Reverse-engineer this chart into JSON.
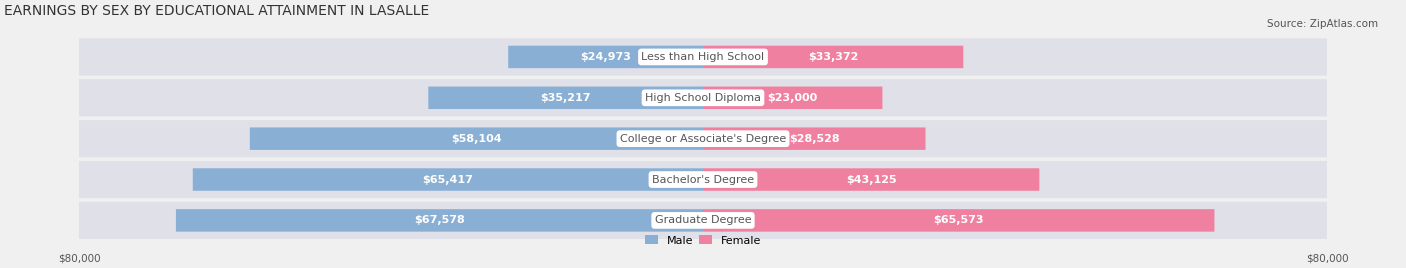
{
  "title": "EARNINGS BY SEX BY EDUCATIONAL ATTAINMENT IN LASALLE",
  "source": "Source: ZipAtlas.com",
  "categories": [
    "Less than High School",
    "High School Diploma",
    "College or Associate's Degree",
    "Bachelor's Degree",
    "Graduate Degree"
  ],
  "male_values": [
    24973,
    35217,
    58104,
    65417,
    67578
  ],
  "female_values": [
    33372,
    23000,
    28528,
    43125,
    65573
  ],
  "male_color": "#8aafd4",
  "female_color": "#f080a0",
  "male_label": "Male",
  "female_label": "Female",
  "max_value": 80000,
  "bg_color": "#f0f0f0",
  "bar_bg_color": "#e0e0e8",
  "label_color_inside": "#ffffff",
  "label_color_outside": "#555555",
  "category_box_color": "#ffffff",
  "category_text_color": "#555555",
  "title_fontsize": 10,
  "source_fontsize": 7.5,
  "bar_label_fontsize": 8,
  "category_fontsize": 8,
  "axis_label_fontsize": 7.5,
  "inside_threshold": 15000
}
